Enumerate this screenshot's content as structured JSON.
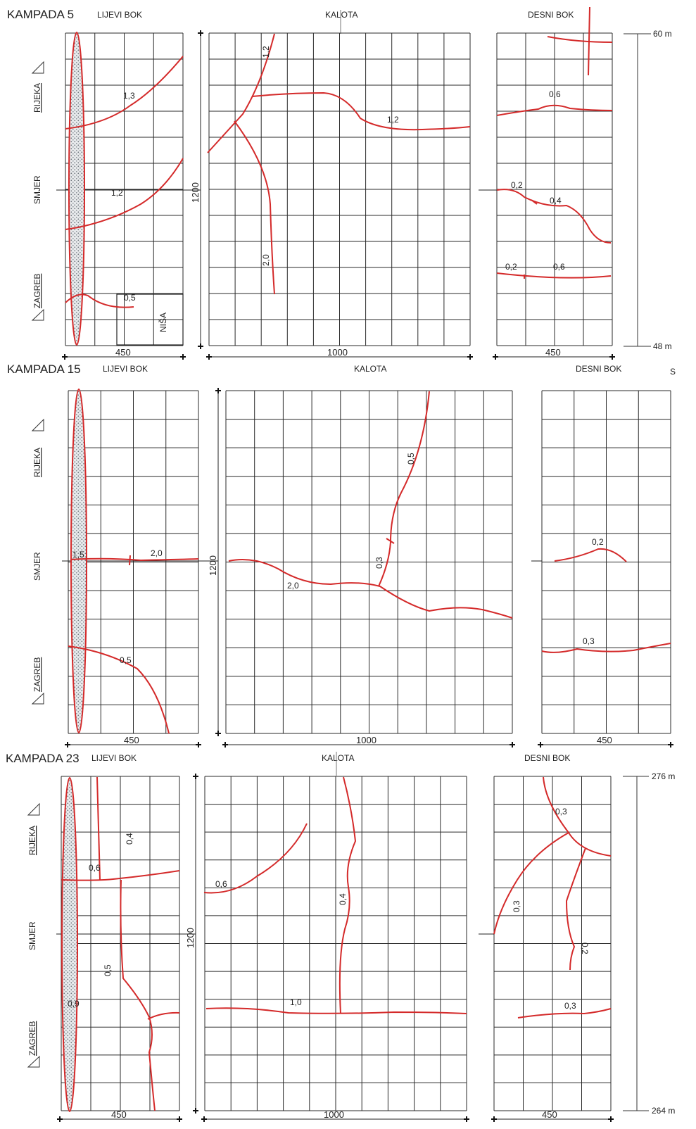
{
  "titles": {
    "k5": "KAMPADA 5",
    "k15": "KAMPADA 15",
    "k23": "KAMPADA 23"
  },
  "sections": {
    "left": "LIJEVI BOK",
    "crown": "KALOTA",
    "right": "DESNI BOK"
  },
  "side_labels": {
    "rijeka": "RIJEKA",
    "smjer": "SMJER",
    "zagreb": "ZAGREB",
    "nisa": "NIŠA"
  },
  "dims": {
    "flank_width": "450",
    "crown_width": "1000",
    "height": "1200"
  },
  "stationing": {
    "k5_top": "60 m",
    "k5_bottom": "48 m",
    "k15_marker": "S",
    "k23_top": "276 m",
    "k23_bottom": "264 m"
  },
  "apertures": {
    "k5": {
      "left_top": "1,3",
      "left_mid": "1,2",
      "left_low": "0,5",
      "crown_diag": "1,2",
      "crown_horiz": "1,2",
      "crown_vert": "2,0",
      "right_top": "0,6",
      "right_a": "0,2",
      "right_b": "0,4",
      "right_c": "0,2",
      "right_d": "0,6"
    },
    "k15": {
      "left_a": "1,5",
      "left_b": "2,0",
      "left_low": "0,5",
      "crown_vert": "0,5",
      "crown_branch": "0,3",
      "crown_horiz": "2,0",
      "right_top": "0,2",
      "right_low": "0,3"
    },
    "k23": {
      "left_vert": "0,4",
      "left_horiz": "0,6",
      "left_low": "0,5",
      "left_edge": "0,9",
      "crown_diag": "0,6",
      "crown_vert": "0,4",
      "crown_horiz": "1,0",
      "right_top": "0,3",
      "right_diag": "0,3",
      "right_vert": "0,2",
      "right_low": "0,3"
    }
  },
  "colors": {
    "crack": "#d42a2a",
    "grid": "#2a2a2a",
    "hatch": "#9aa0a6"
  }
}
